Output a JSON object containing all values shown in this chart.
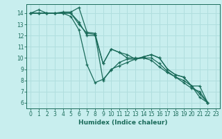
{
  "xlabel": "Humidex (Indice chaleur)",
  "bg_color": "#c8eeee",
  "grid_color": "#b0dede",
  "line_color": "#1a6b5a",
  "xlim": [
    -0.5,
    23.5
  ],
  "ylim": [
    5.5,
    14.8
  ],
  "xticks": [
    0,
    1,
    2,
    3,
    4,
    5,
    6,
    7,
    8,
    9,
    10,
    11,
    12,
    13,
    14,
    15,
    16,
    17,
    18,
    19,
    20,
    21,
    22,
    23
  ],
  "yticks": [
    6,
    7,
    8,
    9,
    10,
    11,
    12,
    13,
    14
  ],
  "series": [
    [
      14.0,
      14.3,
      14.0,
      14.0,
      14.1,
      14.1,
      14.5,
      12.3,
      12.2,
      9.5,
      10.8,
      10.5,
      10.3,
      9.9,
      10.1,
      10.3,
      10.0,
      9.0,
      8.5,
      8.3,
      7.5,
      7.5,
      6.0
    ],
    [
      14.0,
      14.0,
      14.0,
      14.0,
      14.0,
      14.0,
      13.0,
      12.2,
      12.1,
      8.0,
      9.0,
      9.3,
      9.6,
      9.9,
      10.0,
      9.8,
      9.2,
      8.7,
      8.3,
      7.8,
      7.3,
      7.0,
      6.0
    ],
    [
      14.0,
      14.0,
      14.0,
      14.0,
      14.0,
      13.7,
      12.5,
      9.4,
      7.8,
      8.1,
      8.9,
      9.6,
      9.9,
      9.9,
      10.1,
      10.3,
      10.0,
      9.0,
      8.5,
      8.3,
      7.5,
      6.8,
      6.0
    ],
    [
      14.0,
      14.0,
      14.0,
      14.0,
      14.0,
      14.0,
      13.2,
      12.0,
      12.0,
      9.5,
      10.8,
      10.5,
      10.0,
      10.0,
      10.0,
      10.0,
      9.5,
      8.8,
      8.3,
      8.0,
      7.5,
      6.5,
      6.0
    ]
  ]
}
